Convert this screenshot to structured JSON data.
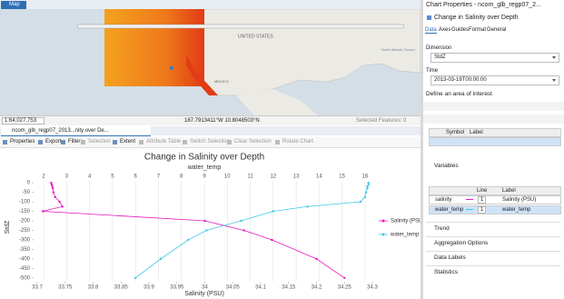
{
  "map_tab": {
    "title": "Map"
  },
  "map": {
    "labels": [
      "UNITED STATES",
      "MEXICO",
      "North Atlantic Ocean"
    ]
  },
  "map_status": {
    "scale": "1:64,027,753",
    "coordinates": "187.7913411°W 10.8048503°N",
    "selected": "Selected Features: 0"
  },
  "chart_tab": {
    "title": "ncom_glb_regp07_2013...nity over De..."
  },
  "toolbar": {
    "items": [
      "Properties",
      "Export",
      "Filter:",
      "Selection",
      "Extent",
      "Attribute Table",
      "Switch Selection",
      "Clear Selection",
      "Rotate Chart"
    ]
  },
  "chart_data": {
    "type": "line",
    "title": "Change in Salinity over Depth",
    "x_label": "Salinity (PSU)",
    "x2_label": "water_temp",
    "y_label": "StdZ",
    "y": [
      0,
      -10,
      -20,
      -30,
      -50,
      -75,
      -100,
      -125,
      -150,
      -200,
      -250,
      -300,
      -400,
      -500
    ],
    "series": [
      {
        "name": "Salinity (PSU)",
        "color": "#e619c3",
        "values": [
          33.725,
          33.726,
          33.727,
          33.728,
          33.729,
          33.732,
          33.74,
          33.745,
          33.71,
          34.0,
          34.07,
          34.12,
          34.2,
          34.25
        ]
      },
      {
        "name": "water_temp",
        "color": "#3cc8e6",
        "axis": "x2",
        "values": [
          16.15,
          16.15,
          16.1,
          16.1,
          16.05,
          16.0,
          15.8,
          13.5,
          12.0,
          10.6,
          9.1,
          8.3,
          7.1,
          6.0
        ]
      }
    ],
    "xlim": [
      33.7,
      34.3
    ],
    "xticks": [
      33.7,
      33.75,
      33.8,
      33.85,
      33.9,
      33.95,
      34,
      34.05,
      34.1,
      34.15,
      34.2,
      34.25,
      34.3
    ],
    "x2lim": [
      1.72,
      16.32
    ],
    "x2ticks": [
      2,
      3,
      4,
      5,
      6,
      7,
      8,
      9,
      10,
      11,
      12,
      13,
      14,
      15,
      16
    ],
    "ylim": [
      -520,
      10
    ],
    "yticks": [
      0,
      -50,
      -100,
      -150,
      -200,
      -250,
      -300,
      -350,
      -400,
      -450,
      -500
    ],
    "grid": true,
    "legend": "right"
  },
  "panel": {
    "title": "Chart Properties - ncom_glb_regp07_2...",
    "subtitle": "Change in Salinity over Depth",
    "tabs": [
      "Data",
      "Axes",
      "Guides",
      "Format",
      "General"
    ],
    "dimension_label": "Dimension",
    "dimension": "StdZ",
    "time_label": "Time",
    "time": "2013-03-19T00:00:00",
    "aoi_heading": "Define an area of interest",
    "aoi_columns": [
      "Symbol",
      "Label"
    ],
    "variables_heading": "Variables",
    "variable_columns": [
      "Line",
      "Label"
    ],
    "variables": [
      [
        "salinity",
        1,
        "Salinity (PSU)"
      ],
      [
        "water_temp",
        1,
        "water_temp"
      ]
    ],
    "sections": [
      "Trend",
      "Aggregation Options",
      "Data Labels",
      "Statistics"
    ]
  }
}
